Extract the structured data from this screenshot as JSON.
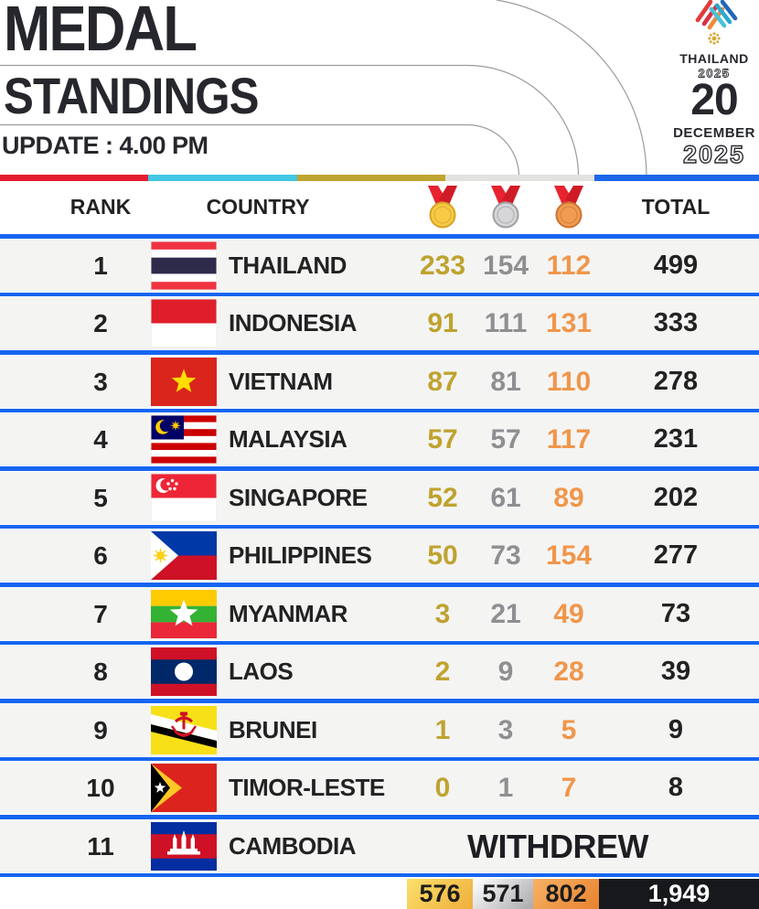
{
  "poster": {
    "title_line1": "MEDAL",
    "title_line2": "STANDINGS",
    "update": "UPDATE : 4.00 PM",
    "logo": {
      "country": "THAILAND",
      "year": "2025"
    },
    "date": {
      "day": "20",
      "month": "DECEMBER",
      "year": "2025"
    }
  },
  "table": {
    "header": {
      "rank": "RANK",
      "country": "COUNTRY",
      "total": "TOTAL"
    },
    "rows": [
      {
        "rank": "1",
        "country": "THAILAND",
        "flag": "thailand",
        "gold": "233",
        "silver": "154",
        "bronze": "112",
        "total": "499"
      },
      {
        "rank": "2",
        "country": "INDONESIA",
        "flag": "indonesia",
        "gold": "91",
        "silver": "111",
        "bronze": "131",
        "total": "333"
      },
      {
        "rank": "3",
        "country": "VIETNAM",
        "flag": "vietnam",
        "gold": "87",
        "silver": "81",
        "bronze": "110",
        "total": "278"
      },
      {
        "rank": "4",
        "country": "MALAYSIA",
        "flag": "malaysia",
        "gold": "57",
        "silver": "57",
        "bronze": "117",
        "total": "231"
      },
      {
        "rank": "5",
        "country": "SINGAPORE",
        "flag": "singapore",
        "gold": "52",
        "silver": "61",
        "bronze": "89",
        "total": "202"
      },
      {
        "rank": "6",
        "country": "PHILIPPINES",
        "flag": "philippines",
        "gold": "50",
        "silver": "73",
        "bronze": "154",
        "total": "277"
      },
      {
        "rank": "7",
        "country": "MYANMAR",
        "flag": "myanmar",
        "gold": "3",
        "silver": "21",
        "bronze": "49",
        "total": "73"
      },
      {
        "rank": "8",
        "country": "LAOS",
        "flag": "laos",
        "gold": "2",
        "silver": "9",
        "bronze": "28",
        "total": "39"
      },
      {
        "rank": "9",
        "country": "BRUNEI",
        "flag": "brunei",
        "gold": "1",
        "silver": "3",
        "bronze": "5",
        "total": "9"
      },
      {
        "rank": "10",
        "country": "TIMOR-LESTE",
        "flag": "timor-leste",
        "gold": "0",
        "silver": "1",
        "bronze": "7",
        "total": "8"
      },
      {
        "rank": "11",
        "country": "CAMBODIA",
        "flag": "cambodia",
        "status": "WITHDREW"
      }
    ],
    "totals": {
      "gold": "576",
      "silver": "571",
      "bronze": "802",
      "total": "1,949"
    }
  },
  "colors": {
    "divider_blue": "#1565f0",
    "gold_text": "#bfa32f",
    "silver_text": "#8f8f92",
    "bronze_text": "#f0964a",
    "stripe": [
      "#e51c2f",
      "#41c7e3",
      "#bfa430",
      "#e2e2e0",
      "#1b66e8"
    ],
    "medal_gold_fill": "#f6ca45",
    "medal_gold_ring": "#d7a326",
    "medal_silver_fill": "#d6d6d8",
    "medal_silver_ring": "#9fa0a4",
    "medal_bronze_fill": "#f09a52",
    "medal_bronze_ring": "#cb742f",
    "ribbon_red": "#e8232f"
  },
  "chart_data": {
    "type": "table",
    "title": "MEDAL STANDINGS — THAILAND 2025 SEA Games, update 4.00 PM, 20 December 2025",
    "columns": [
      "RANK",
      "COUNTRY",
      "GOLD",
      "SILVER",
      "BRONZE",
      "TOTAL"
    ],
    "rows": [
      [
        1,
        "THAILAND",
        233,
        154,
        112,
        499
      ],
      [
        2,
        "INDONESIA",
        91,
        111,
        131,
        333
      ],
      [
        3,
        "VIETNAM",
        87,
        81,
        110,
        278
      ],
      [
        4,
        "MALAYSIA",
        57,
        57,
        117,
        231
      ],
      [
        5,
        "SINGAPORE",
        52,
        61,
        89,
        202
      ],
      [
        6,
        "PHILIPPINES",
        50,
        73,
        154,
        277
      ],
      [
        7,
        "MYANMAR",
        3,
        21,
        49,
        73
      ],
      [
        8,
        "LAOS",
        2,
        9,
        28,
        39
      ],
      [
        9,
        "BRUNEI",
        1,
        3,
        5,
        9
      ],
      [
        10,
        "TIMOR-LESTE",
        0,
        1,
        7,
        8
      ],
      [
        11,
        "CAMBODIA",
        "WITHDREW",
        "WITHDREW",
        "WITHDREW",
        "WITHDREW"
      ]
    ],
    "totals": {
      "gold": 576,
      "silver": 571,
      "bronze": 802,
      "total": 1949
    }
  }
}
